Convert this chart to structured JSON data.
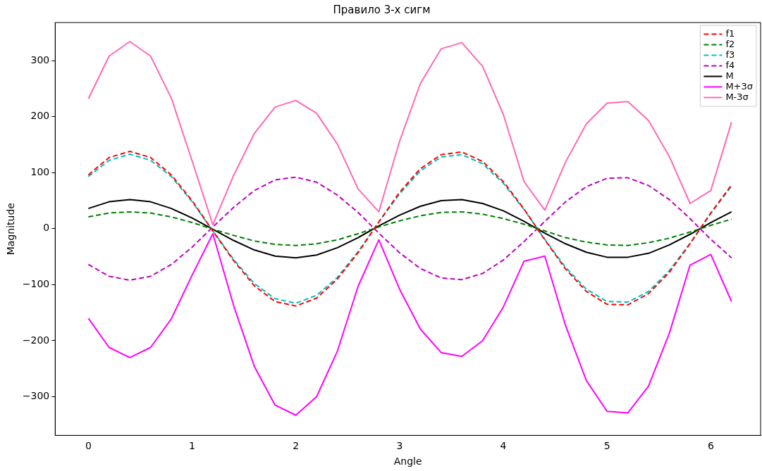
{
  "chart_data": {
    "type": "line",
    "title": "Правило 3-х сигм",
    "xlabel": "Angle",
    "ylabel": "Magnitude",
    "x": [
      0,
      0.2,
      0.4,
      0.6,
      0.8,
      1.0,
      1.2,
      1.4,
      1.6,
      1.8,
      2.0,
      2.2,
      2.4,
      2.6,
      2.8,
      3.0,
      3.2,
      3.4,
      3.6,
      3.8,
      4.0,
      4.2,
      4.4,
      4.6,
      4.8,
      5.0,
      5.2,
      5.4,
      5.6,
      5.8,
      6.0,
      6.2
    ],
    "series": [
      {
        "name": "f1",
        "color": "#ff0000",
        "line_style": "dashed",
        "values": [
          96,
          127,
          138,
          127,
          96,
          50,
          -4,
          -57,
          -102,
          -130,
          -138,
          -124,
          -90,
          -43,
          12,
          65,
          107,
          132,
          137,
          120,
          84,
          35,
          -20,
          -72,
          -112,
          -135,
          -136,
          -116,
          -78,
          -27,
          28,
          78
        ]
      },
      {
        "name": "f2",
        "color": "#008000",
        "line_style": "dashed",
        "values": [
          21,
          28,
          30,
          28,
          21,
          11,
          -1,
          -12,
          -22,
          -28,
          -30,
          -27,
          -20,
          -9,
          3,
          14,
          23,
          29,
          30,
          26,
          18,
          8,
          -4,
          -16,
          -24,
          -29,
          -30,
          -25,
          -17,
          -6,
          6,
          17
        ]
      },
      {
        "name": "f3",
        "color": "#00bfbf",
        "line_style": "dashed",
        "values": [
          93,
          122,
          133,
          122,
          93,
          48,
          -4,
          -55,
          -98,
          -125,
          -133,
          -119,
          -87,
          -41,
          12,
          62,
          103,
          128,
          132,
          116,
          81,
          34,
          -19,
          -69,
          -108,
          -130,
          -131,
          -112,
          -75,
          -26,
          27,
          76
        ]
      },
      {
        "name": "f4",
        "color": "#bf00bf",
        "line_style": "dashed",
        "values": [
          -64,
          -85,
          -92,
          -85,
          -64,
          -33,
          3,
          38,
          68,
          87,
          92,
          83,
          60,
          29,
          -8,
          -43,
          -71,
          -88,
          -91,
          -80,
          -56,
          -23,
          13,
          48,
          75,
          90,
          91,
          77,
          52,
          18,
          -19,
          -52
        ]
      },
      {
        "name": "M",
        "color": "#000000",
        "line_style": "solid",
        "values": [
          36,
          48,
          52,
          48,
          36,
          19,
          -1,
          -21,
          -38,
          -49,
          -52,
          -47,
          -34,
          -16,
          5,
          24,
          40,
          50,
          52,
          45,
          32,
          13,
          -8,
          -27,
          -42,
          -51,
          -51,
          -44,
          -29,
          -10,
          11,
          30
        ]
      },
      {
        "name": "M+3σ",
        "color": "#ff00ff",
        "line_style": "solid",
        "values": [
          -160,
          -212,
          -230,
          -212,
          -161,
          -83,
          -9,
          -137,
          -246,
          -315,
          -333,
          -300,
          -219,
          -103,
          -20,
          -108,
          -179,
          -221,
          -228,
          -200,
          -140,
          -58,
          -49,
          -173,
          -271,
          -326,
          -329,
          -281,
          -187,
          -65,
          -46,
          -130
        ]
      },
      {
        "name": "M-3σ",
        "color": "#ff69b4",
        "line_style": "solid",
        "values": [
          232,
          308,
          334,
          308,
          233,
          121,
          7,
          95,
          170,
          217,
          229,
          206,
          151,
          71,
          30,
          156,
          259,
          321,
          332,
          290,
          204,
          84,
          33,
          119,
          187,
          224,
          227,
          193,
          129,
          45,
          68,
          190
        ]
      }
    ],
    "xlim": [
      -0.32,
      6.48
    ],
    "xticks": [
      0,
      1,
      2,
      3,
      4,
      5,
      6
    ],
    "ylim": [
      -369,
      368
    ],
    "yticks": [
      -300,
      -200,
      -100,
      0,
      100,
      200,
      300
    ],
    "grid": false,
    "legend": "top right",
    "marker": "none"
  }
}
